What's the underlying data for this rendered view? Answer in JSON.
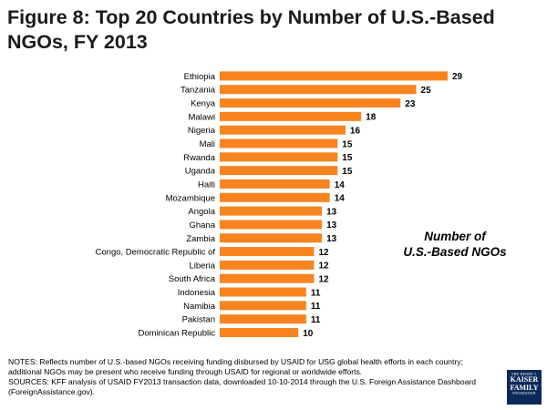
{
  "title": "Figure 8: Top 20 Countries by Number of U.S.-Based NGOs, FY 2013",
  "colors": {
    "bar": "#f7841f",
    "text": "#000000",
    "logo_bg": "#0b2a5b"
  },
  "chart_data": {
    "type": "bar",
    "orientation": "horizontal",
    "title": "Figure 8: Top 20 Countries by Number of U.S.-Based NGOs, FY 2013",
    "categories": [
      "Ethiopia",
      "Tanzania",
      "Kenya",
      "Malawi",
      "Nigeria",
      "Mali",
      "Rwanda",
      "Uganda",
      "Haiti",
      "Mozambique",
      "Angola",
      "Ghana",
      "Zambia",
      "Congo, Democratic Republic of",
      "Liberia",
      "South Africa",
      "Indonesia",
      "Namibia",
      "Pakistan",
      "Dominican Republic"
    ],
    "values": [
      29,
      25,
      23,
      18,
      16,
      15,
      15,
      15,
      14,
      14,
      13,
      13,
      13,
      12,
      12,
      12,
      11,
      11,
      11,
      10
    ],
    "series_label": "Number of U.S.-Based NGOs",
    "xlim": [
      0,
      29
    ],
    "grid": false,
    "legend": "right"
  },
  "legend_text": {
    "line1": "Number of",
    "line2": "U.S.-Based NGOs"
  },
  "notes": {
    "line1": "NOTES: Reflects number of U.S.-based NGOs receiving funding disbursed  by USAID for USG global health efforts in each country;",
    "line2": "additional NGOs may be present who receive funding through USAID for regional or worldwide efforts.",
    "line3": "SOURCES: KFF analysis of  USAID FY2013 transaction data, downloaded 10-10-2014 through the U.S. Foreign Assistance Dashboard",
    "line4": "(ForeignAssistance.gov)."
  },
  "logo": {
    "line1": "THE HENRY J.",
    "line2": "KAISER",
    "line3": "FAMILY",
    "line4": "FOUNDATION"
  }
}
